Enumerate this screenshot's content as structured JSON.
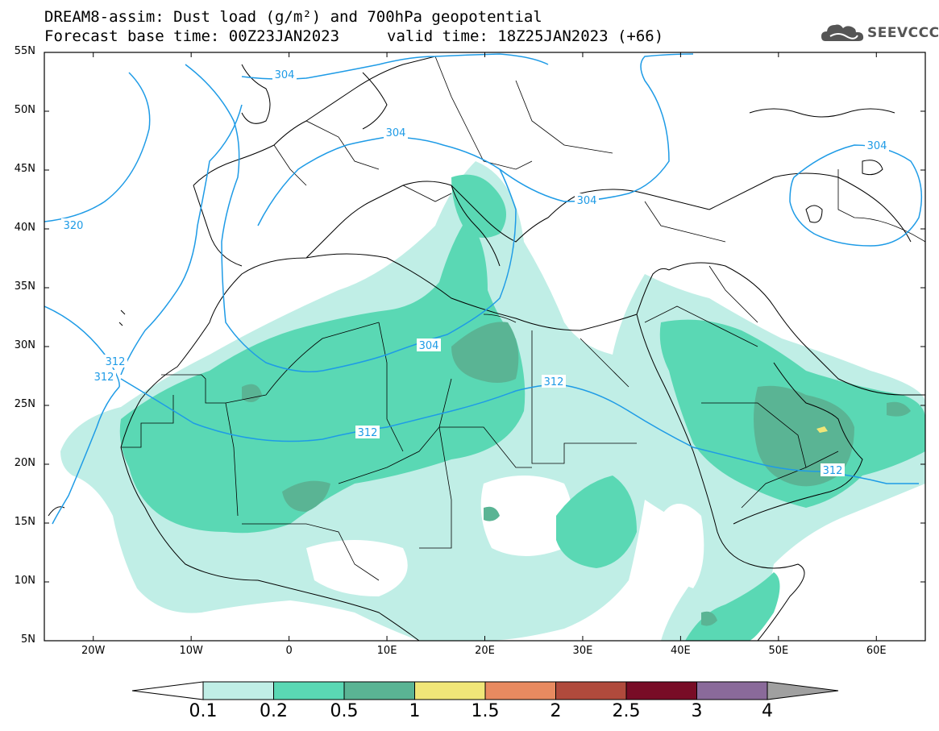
{
  "title": {
    "line1": "DREAM8-assim: Dust load (g/m²) and 700hPa geopotential",
    "line2": "Forecast base time: 00Z23JAN2023",
    "valid": "valid time: 18Z25JAN2023 (+66)"
  },
  "logo": {
    "text": "SEEVCCC",
    "icon": "cloud-icon"
  },
  "axes": {
    "lat_labels": [
      "55N",
      "50N",
      "45N",
      "40N",
      "35N",
      "30N",
      "25N",
      "20N",
      "15N",
      "10N",
      "5N"
    ],
    "lon_labels": [
      "20W",
      "10W",
      "0",
      "10E",
      "20E",
      "30E",
      "40E",
      "50E",
      "60E"
    ],
    "lat_range": [
      5,
      55
    ],
    "lon_range": [
      -25,
      65
    ]
  },
  "contour_labels": {
    "c304a": "304",
    "c304b": "304",
    "c304c": "304",
    "c304d": "304",
    "c304e": "304",
    "c312a": "312",
    "c312b": "312",
    "c312c": "312",
    "c312d": "312",
    "c312e": "312",
    "c320": "320"
  },
  "legend": {
    "labels": [
      "0.1",
      "0.2",
      "0.5",
      "1",
      "1.5",
      "2",
      "2.5",
      "3",
      "4"
    ],
    "colors": [
      "#ffffff",
      "#c0eee6",
      "#5ad8b4",
      "#5ab494",
      "#f0e678",
      "#e88a60",
      "#b04a3c",
      "#780c26",
      "#8a6a9a",
      "#a0a0a0"
    ]
  }
}
